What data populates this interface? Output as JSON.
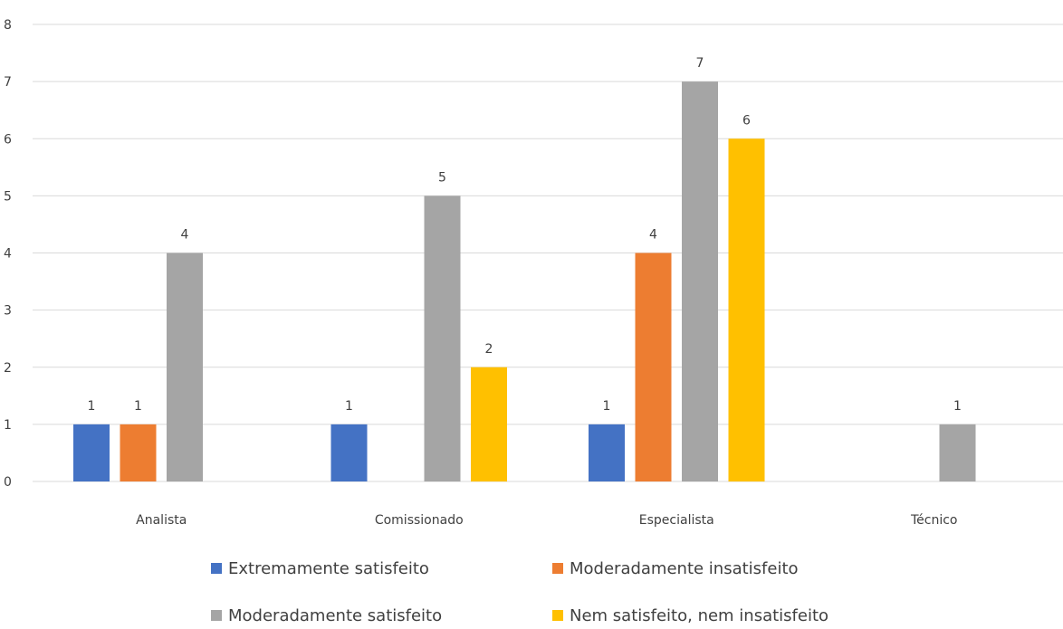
{
  "chart_data": {
    "type": "bar",
    "title": "",
    "xlabel": "",
    "ylabel": "",
    "categories": [
      "Analista",
      "Comissionado",
      "Especialista",
      "Técnico"
    ],
    "ylim": [
      0,
      8
    ],
    "yticks": [
      0,
      1,
      2,
      3,
      4,
      5,
      6,
      7,
      8
    ],
    "grid": true,
    "legend_position": "bottom",
    "series": [
      {
        "name": "Extremamente satisfeito",
        "color": "#4472C4",
        "values": [
          1,
          1,
          1,
          null
        ]
      },
      {
        "name": "Moderadamente insatisfeito",
        "color": "#ED7D31",
        "values": [
          1,
          null,
          4,
          null
        ]
      },
      {
        "name": "Moderadamente satisfeito",
        "color": "#A5A5A5",
        "values": [
          4,
          5,
          7,
          1
        ]
      },
      {
        "name": "Nem satisfeito, nem insatisfeito",
        "color": "#FFC000",
        "values": [
          null,
          2,
          6,
          null
        ]
      }
    ]
  }
}
